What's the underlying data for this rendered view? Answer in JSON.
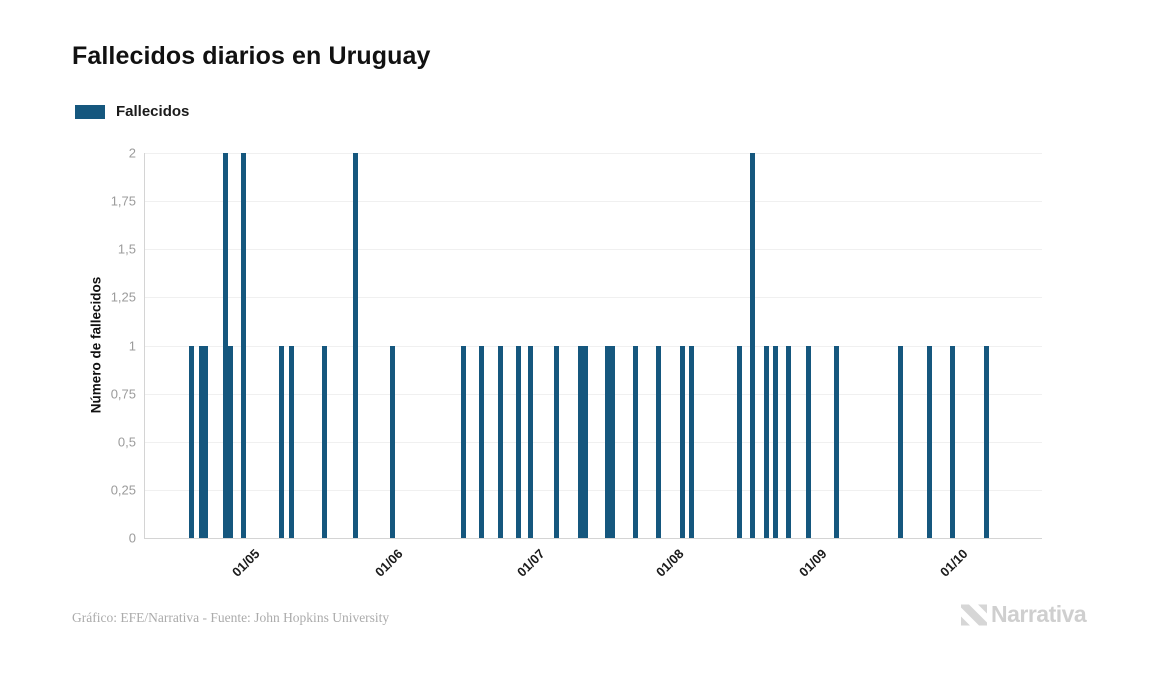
{
  "header": {
    "title": "Fallecidos diarios en Uruguay"
  },
  "legend": {
    "label": "Fallecidos",
    "swatch_color": "#15577E"
  },
  "footer": {
    "credit": "Gráfico: EFE/Narrativa - Fuente: John Hopkins University",
    "brand": "Narrativa"
  },
  "colors": {
    "bar": "#15577E",
    "grid": "#f0f0f0",
    "axis": "#d4d4d4",
    "tick_text": "#9b9b9b",
    "logo": "#d6d6d6"
  },
  "chart_data": {
    "type": "bar",
    "title": "Fallecidos diarios en Uruguay",
    "xlabel": "",
    "ylabel": "Número de fallecidos",
    "ylim": [
      0,
      2
    ],
    "grid": true,
    "legend_position": "top-left",
    "legend_entries": [
      "Fallecidos"
    ],
    "bar_color": "#15577E",
    "y_tick_labels_top_to_bottom": [
      "2",
      "1,75",
      "1,5",
      "1,25",
      "1",
      "0,75",
      "0,5",
      "0,25",
      "0"
    ],
    "x_ticks": [
      {
        "label": "01/05",
        "x_pct": 12.04
      },
      {
        "label": "01/06",
        "x_pct": 27.98
      },
      {
        "label": "01/07",
        "x_pct": 43.81
      },
      {
        "label": "01/08",
        "x_pct": 59.31
      },
      {
        "label": "01/09",
        "x_pct": 75.25
      },
      {
        "label": "01/10",
        "x_pct": 90.97
      }
    ],
    "series_name": "Fallecidos",
    "bars": [
      {
        "x_pct": 5.16,
        "value": 1,
        "approx_date": "2020-04-18"
      },
      {
        "x_pct": 6.28,
        "value": 1,
        "approx_date": "2020-04-20"
      },
      {
        "x_pct": 6.78,
        "value": 1,
        "approx_date": "2020-04-21"
      },
      {
        "x_pct": 8.95,
        "value": 2,
        "approx_date": "2020-04-25"
      },
      {
        "x_pct": 9.53,
        "value": 1,
        "approx_date": "2020-04-26"
      },
      {
        "x_pct": 11.01,
        "value": 2,
        "approx_date": "2020-04-29"
      },
      {
        "x_pct": 15.25,
        "value": 1,
        "approx_date": "2020-05-07"
      },
      {
        "x_pct": 16.28,
        "value": 1,
        "approx_date": "2020-05-09"
      },
      {
        "x_pct": 20.0,
        "value": 1,
        "approx_date": "2020-05-16"
      },
      {
        "x_pct": 23.52,
        "value": 2,
        "approx_date": "2020-05-23"
      },
      {
        "x_pct": 27.61,
        "value": 1,
        "approx_date": "2020-05-31"
      },
      {
        "x_pct": 35.51,
        "value": 1,
        "approx_date": "2020-06-15"
      },
      {
        "x_pct": 37.51,
        "value": 1,
        "approx_date": "2020-06-19"
      },
      {
        "x_pct": 39.6,
        "value": 1,
        "approx_date": "2020-06-23"
      },
      {
        "x_pct": 41.69,
        "value": 1,
        "approx_date": "2020-06-27"
      },
      {
        "x_pct": 43.03,
        "value": 1,
        "approx_date": "2020-06-29"
      },
      {
        "x_pct": 45.91,
        "value": 1,
        "approx_date": "2020-07-05"
      },
      {
        "x_pct": 48.55,
        "value": 1,
        "approx_date": "2020-07-10"
      },
      {
        "x_pct": 49.16,
        "value": 1,
        "approx_date": "2020-07-11"
      },
      {
        "x_pct": 51.56,
        "value": 1,
        "approx_date": "2020-07-16"
      },
      {
        "x_pct": 52.17,
        "value": 1,
        "approx_date": "2020-07-17"
      },
      {
        "x_pct": 54.65,
        "value": 1,
        "approx_date": "2020-07-22"
      },
      {
        "x_pct": 57.3,
        "value": 1,
        "approx_date": "2020-07-27"
      },
      {
        "x_pct": 59.87,
        "value": 1,
        "approx_date": "2020-08-02"
      },
      {
        "x_pct": 60.92,
        "value": 1,
        "approx_date": "2020-08-04"
      },
      {
        "x_pct": 66.28,
        "value": 1,
        "approx_date": "2020-08-14"
      },
      {
        "x_pct": 67.75,
        "value": 2,
        "approx_date": "2020-08-17"
      },
      {
        "x_pct": 69.29,
        "value": 1,
        "approx_date": "2020-08-20"
      },
      {
        "x_pct": 70.26,
        "value": 1,
        "approx_date": "2020-08-22"
      },
      {
        "x_pct": 71.79,
        "value": 1,
        "approx_date": "2020-08-25"
      },
      {
        "x_pct": 73.96,
        "value": 1,
        "approx_date": "2020-08-29"
      },
      {
        "x_pct": 77.04,
        "value": 1,
        "approx_date": "2020-09-04"
      },
      {
        "x_pct": 84.28,
        "value": 1,
        "approx_date": "2020-09-18"
      },
      {
        "x_pct": 87.45,
        "value": 1,
        "approx_date": "2020-09-24"
      },
      {
        "x_pct": 90.04,
        "value": 1,
        "approx_date": "2020-09-29"
      },
      {
        "x_pct": 93.76,
        "value": 1,
        "approx_date": "2020-10-06"
      }
    ]
  }
}
